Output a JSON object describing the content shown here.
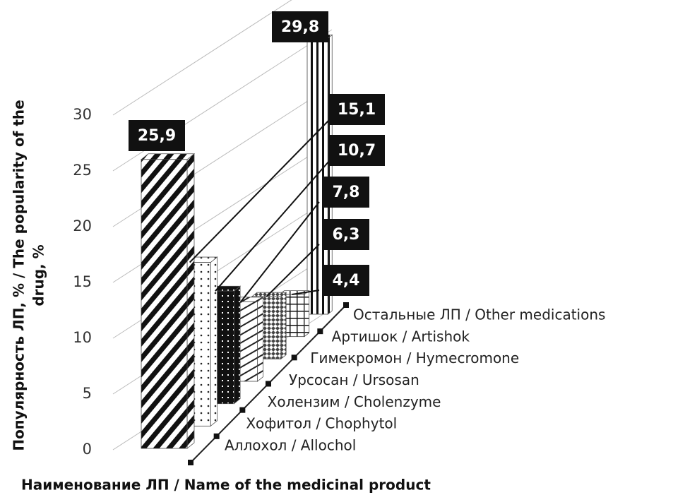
{
  "chart_data": {
    "type": "bar3d",
    "ylabel": [
      "Популярность ЛП, % / The popularity of the",
      "drug, %"
    ],
    "xlabel": "Наименование ЛП / Name of the medicinal product",
    "categories": [
      "Аллохол / Allochol",
      "Хофитол / Chophytol",
      "Холензим / Cholenzyme",
      "Урсосан / Ursosan",
      "Гимекромон / Hymecromone",
      "Артишок / Artishok",
      "Остальные ЛП / Other medications"
    ],
    "values": [
      25.9,
      15.1,
      10.7,
      7.8,
      6.3,
      4.4,
      29.8
    ],
    "value_labels": [
      "25,9",
      "15,1",
      "10,7",
      "7,8",
      "6,3",
      "4,4",
      "29,8"
    ],
    "ylim": [
      0,
      30
    ],
    "yticks": [
      0,
      5,
      10,
      15,
      20,
      25,
      30
    ],
    "grid": true
  }
}
